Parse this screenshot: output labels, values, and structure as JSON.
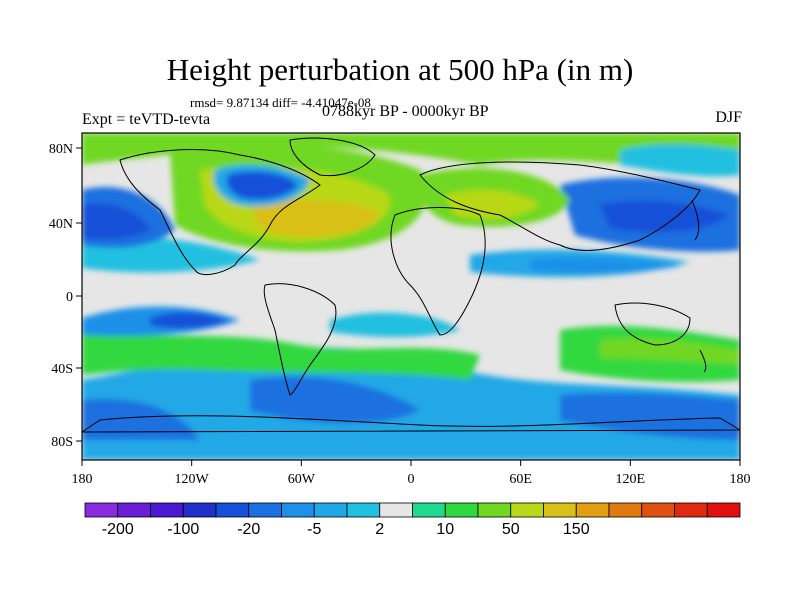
{
  "title": "Height perturbation at 500 hPa (in m)",
  "stats": "rmsd= 9.87134 diff= -4.41047e-08",
  "left_label": "Expt = teVTD-tevta",
  "center_label": "0788kyr BP - 0000kyr BP",
  "right_label": "DJF",
  "lat_ticks": [
    "80N",
    "40N",
    "0",
    "40S",
    "80S"
  ],
  "lon_ticks": [
    "180",
    "120W",
    "60W",
    "0",
    "60E",
    "120E",
    "180"
  ],
  "colorbar": {
    "colors": [
      "#8a2be2",
      "#6a1fd6",
      "#4a18d0",
      "#2030c8",
      "#1450d8",
      "#1a70e0",
      "#1e90e8",
      "#20a8e6",
      "#20c0e0",
      "#e6e6e6",
      "#20d890",
      "#30d840",
      "#70d820",
      "#b8d818",
      "#d8c018",
      "#e0a010",
      "#e07a10",
      "#e05010",
      "#e02a10",
      "#e01010"
    ],
    "labels": [
      "-200",
      "-100",
      "-20",
      "-5",
      "2",
      "10",
      "50",
      "150"
    ]
  }
}
